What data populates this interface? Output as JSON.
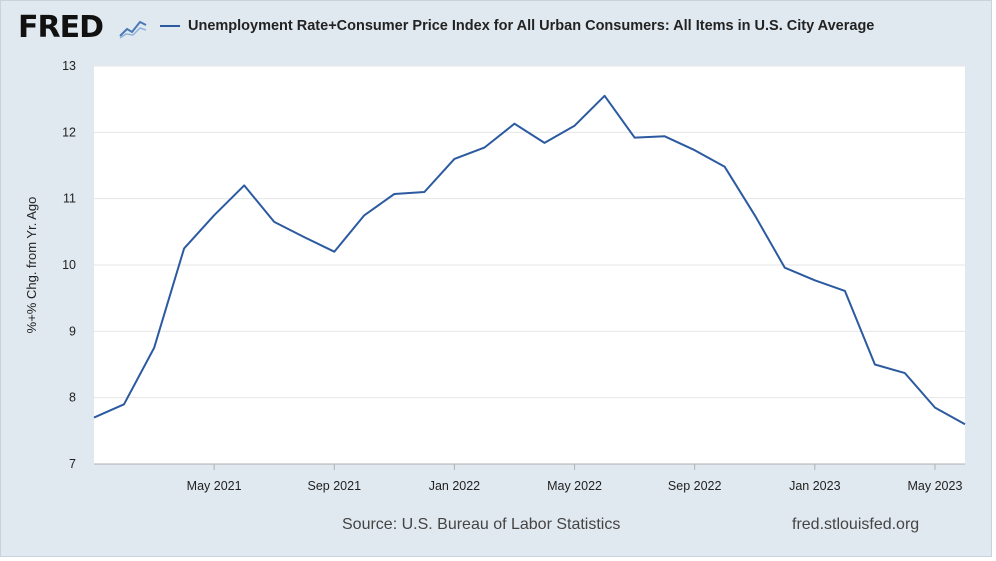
{
  "header": {
    "logo_text": "FRED",
    "logo_icon": "trend-line-icon"
  },
  "legend": {
    "label": "Unemployment Rate+Consumer Price Index for All Urban Consumers: All Items in U.S. City Average",
    "color": "#2c5aa0"
  },
  "footer": {
    "source": "Source: U.S. Bureau of Labor Statistics",
    "site": "fred.stlouisfed.org"
  },
  "chart_data": {
    "type": "line",
    "title": "",
    "xlabel": "",
    "ylabel": "%+% Chg. from Yr. Ago",
    "ylim": [
      7,
      13
    ],
    "yticks": [
      7,
      8,
      9,
      10,
      11,
      12,
      13
    ],
    "xlim": [
      "2021-01",
      "2023-06"
    ],
    "xticks": [
      {
        "x": "2021-05",
        "label": "May 2021"
      },
      {
        "x": "2021-09",
        "label": "Sep 2021"
      },
      {
        "x": "2022-01",
        "label": "Jan 2022"
      },
      {
        "x": "2022-05",
        "label": "May 2022"
      },
      {
        "x": "2022-09",
        "label": "Sep 2022"
      },
      {
        "x": "2023-01",
        "label": "Jan 2023"
      },
      {
        "x": "2023-05",
        "label": "May 2023"
      }
    ],
    "grid": true,
    "legend_position": "top",
    "series": [
      {
        "name": "Unemployment Rate+Consumer Price Index for All Urban Consumers: All Items in U.S. City Average",
        "color": "#2c5aa0",
        "x": [
          "2021-01",
          "2021-02",
          "2021-03",
          "2021-04",
          "2021-05",
          "2021-06",
          "2021-07",
          "2021-08",
          "2021-09",
          "2021-10",
          "2021-11",
          "2021-12",
          "2022-01",
          "2022-02",
          "2022-03",
          "2022-04",
          "2022-05",
          "2022-06",
          "2022-07",
          "2022-08",
          "2022-09",
          "2022-10",
          "2022-11",
          "2022-12",
          "2023-01",
          "2023-02",
          "2023-03",
          "2023-04",
          "2023-05",
          "2023-06"
        ],
        "values": [
          7.7,
          7.9,
          8.75,
          10.25,
          10.75,
          11.2,
          10.65,
          10.42,
          10.2,
          10.75,
          11.07,
          11.1,
          11.6,
          11.77,
          12.13,
          11.84,
          12.1,
          12.55,
          11.92,
          11.94,
          11.73,
          11.48,
          10.75,
          9.96,
          9.77,
          9.61,
          8.5,
          8.37,
          7.85,
          7.6
        ]
      }
    ]
  }
}
